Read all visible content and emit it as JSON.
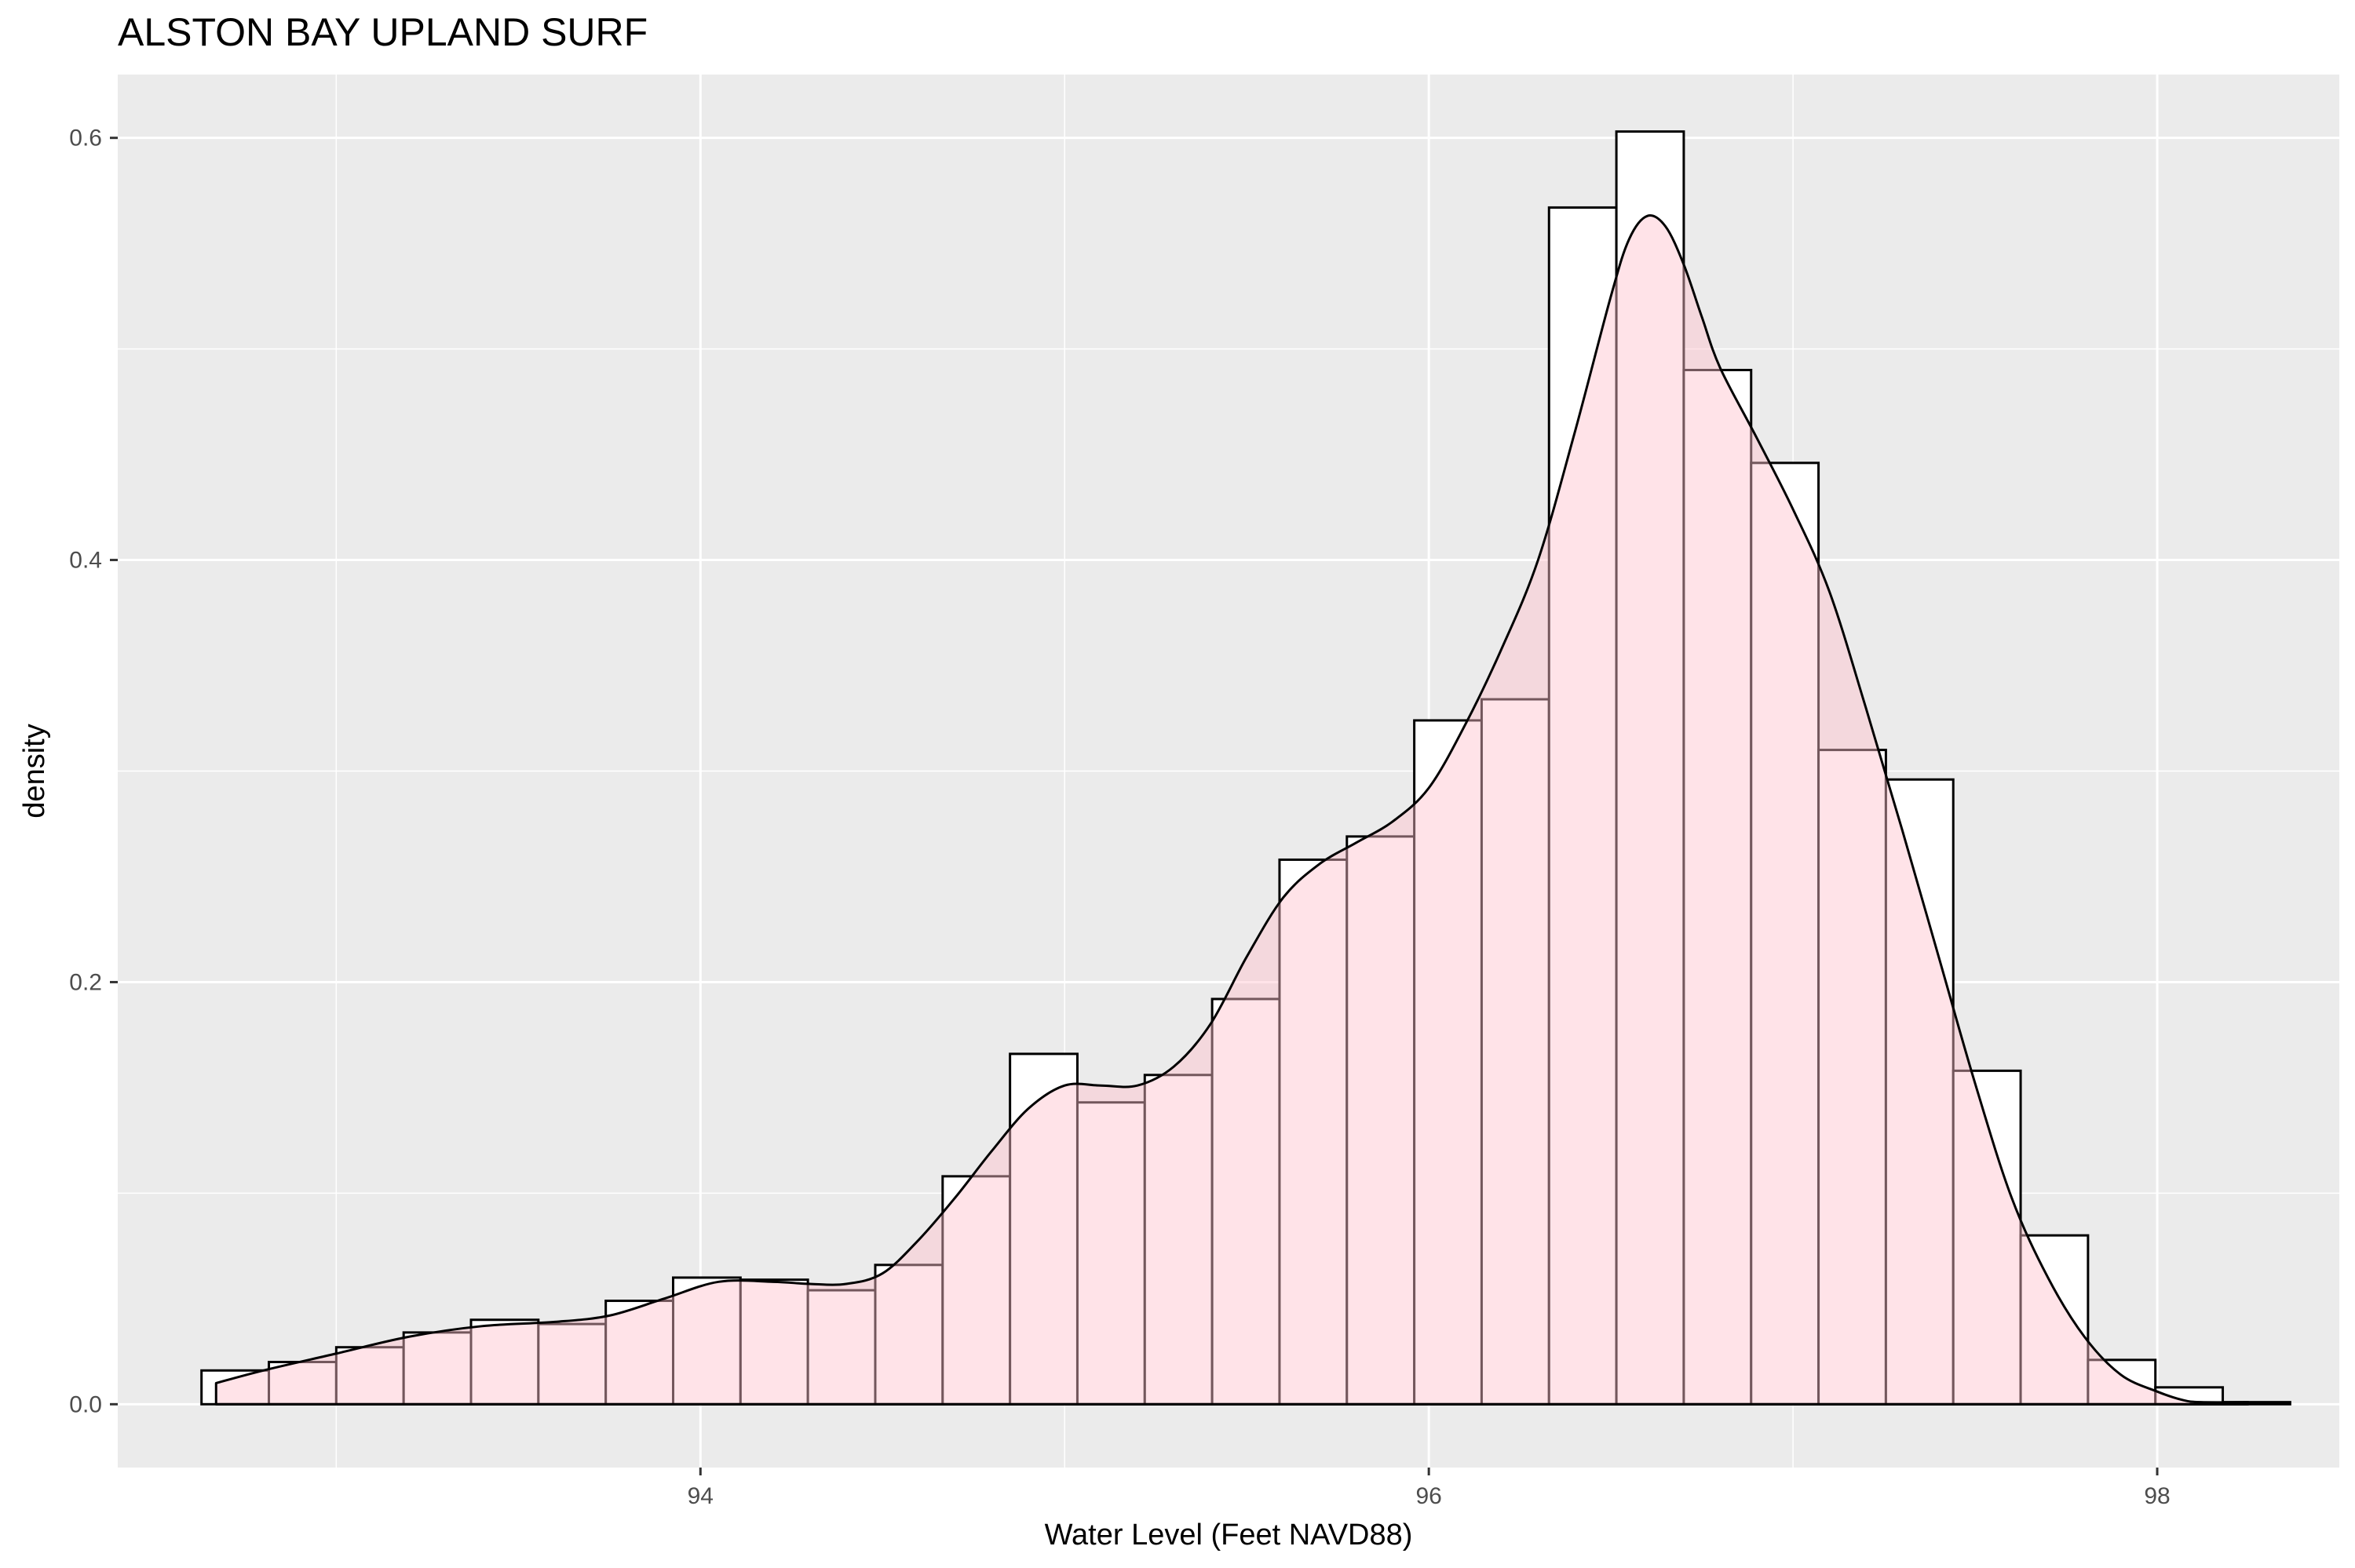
{
  "chart_data": {
    "type": "histogram",
    "title": "ALSTON BAY UPLAND SURF",
    "xlabel": "Water Level (Feet NAVD88)",
    "ylabel": "density",
    "xlim": [
      92.4,
      98.5
    ],
    "ylim": [
      -0.03,
      0.63
    ],
    "x_ticks": [
      94,
      96,
      98
    ],
    "x_tick_labels": [
      "94",
      "96",
      "98"
    ],
    "y_ticks": [
      0.0,
      0.2,
      0.4,
      0.6
    ],
    "y_tick_labels": [
      "0.0",
      "0.2",
      "0.4",
      "0.6"
    ],
    "grid": true,
    "bin_width": 0.185,
    "bins": [
      {
        "x0": 92.63,
        "density": 0.016
      },
      {
        "x0": 92.815,
        "density": 0.02
      },
      {
        "x0": 93.0,
        "density": 0.027
      },
      {
        "x0": 93.185,
        "density": 0.034
      },
      {
        "x0": 93.37,
        "density": 0.04
      },
      {
        "x0": 93.555,
        "density": 0.038
      },
      {
        "x0": 93.74,
        "density": 0.049
      },
      {
        "x0": 93.925,
        "density": 0.06
      },
      {
        "x0": 94.11,
        "density": 0.059
      },
      {
        "x0": 94.295,
        "density": 0.054
      },
      {
        "x0": 94.48,
        "density": 0.066
      },
      {
        "x0": 94.665,
        "density": 0.108
      },
      {
        "x0": 94.85,
        "density": 0.166
      },
      {
        "x0": 95.035,
        "density": 0.143
      },
      {
        "x0": 95.22,
        "density": 0.156
      },
      {
        "x0": 95.405,
        "density": 0.192
      },
      {
        "x0": 95.59,
        "density": 0.258
      },
      {
        "x0": 95.775,
        "density": 0.269
      },
      {
        "x0": 95.96,
        "density": 0.324
      },
      {
        "x0": 96.145,
        "density": 0.334
      },
      {
        "x0": 96.33,
        "density": 0.567
      },
      {
        "x0": 96.515,
        "density": 0.603
      },
      {
        "x0": 96.7,
        "density": 0.49
      },
      {
        "x0": 96.885,
        "density": 0.446
      },
      {
        "x0": 97.07,
        "density": 0.31
      },
      {
        "x0": 97.255,
        "density": 0.296
      },
      {
        "x0": 97.44,
        "density": 0.158
      },
      {
        "x0": 97.625,
        "density": 0.08
      },
      {
        "x0": 97.81,
        "density": 0.021
      },
      {
        "x0": 97.995,
        "density": 0.008
      },
      {
        "x0": 98.18,
        "density": 0.001
      }
    ],
    "density_curve": {
      "x": [
        92.67,
        92.8,
        93.0,
        93.2,
        93.4,
        93.6,
        93.75,
        93.9,
        94.05,
        94.2,
        94.3,
        94.4,
        94.5,
        94.6,
        94.7,
        94.8,
        94.9,
        95.0,
        95.1,
        95.2,
        95.3,
        95.4,
        95.5,
        95.6,
        95.7,
        95.8,
        95.9,
        96.0,
        96.1,
        96.2,
        96.3,
        96.4,
        96.5,
        96.55,
        96.6,
        96.65,
        96.7,
        96.75,
        96.8,
        96.9,
        97.0,
        97.1,
        97.2,
        97.3,
        97.4,
        97.5,
        97.6,
        97.7,
        97.8,
        97.9,
        98.0,
        98.07,
        98.12,
        98.25
      ],
      "y": [
        0.01,
        0.016,
        0.024,
        0.032,
        0.037,
        0.039,
        0.042,
        0.05,
        0.058,
        0.058,
        0.057,
        0.057,
        0.062,
        0.078,
        0.098,
        0.12,
        0.14,
        0.151,
        0.151,
        0.151,
        0.16,
        0.18,
        0.212,
        0.24,
        0.256,
        0.266,
        0.276,
        0.292,
        0.322,
        0.358,
        0.4,
        0.46,
        0.525,
        0.552,
        0.563,
        0.558,
        0.54,
        0.515,
        0.491,
        0.458,
        0.424,
        0.385,
        0.33,
        0.272,
        0.212,
        0.152,
        0.098,
        0.06,
        0.032,
        0.014,
        0.006,
        0.002,
        0.001,
        0.001
      ]
    },
    "colors": {
      "panel_bg": "#ebebeb",
      "grid": "#ffffff",
      "bar_fill": "#ffffff",
      "density_fill": "#ffc0cb",
      "outline": "#000000"
    }
  }
}
